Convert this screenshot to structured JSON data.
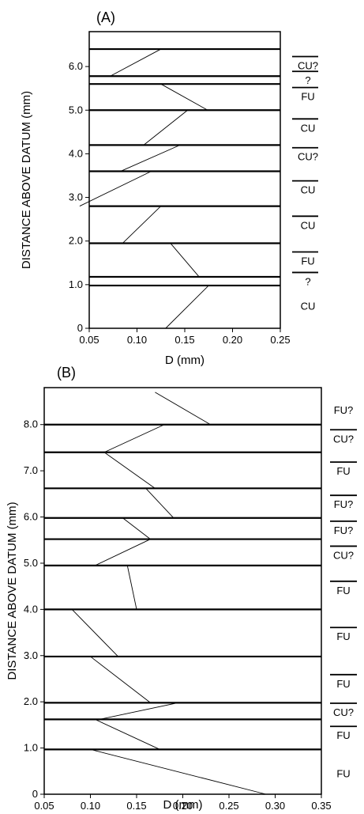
{
  "chart_data": [
    {
      "type": "line",
      "panel_label": "(A)",
      "xlabel": "D (mm)",
      "ylabel": "DISTANCE ABOVE DATUM (mm)",
      "xlim": [
        0.05,
        0.25
      ],
      "ylim": [
        0,
        6.8
      ],
      "xticks": [
        0.05,
        0.1,
        0.15,
        0.2,
        0.25
      ],
      "xtick_labels": [
        "0.05",
        "0.10",
        "0.15",
        "0.20",
        "0.25"
      ],
      "yticks": [
        0,
        1.0,
        2.0,
        3.0,
        4.0,
        5.0,
        6.0
      ],
      "ytick_labels": [
        "0",
        "1.0",
        "2.0",
        "3.0",
        "4.0",
        "5.0",
        "6.0"
      ],
      "boundaries": [
        0.98,
        1.18,
        1.95,
        2.8,
        3.6,
        4.2,
        5.0,
        5.6,
        5.78,
        6.4
      ],
      "segments": [
        [
          [
            0.13,
            0
          ],
          [
            0.175,
            0.98
          ]
        ],
        [
          [
            0.165,
            1.18
          ],
          [
            0.135,
            1.95
          ]
        ],
        [
          [
            0.085,
            1.95
          ],
          [
            0.125,
            2.8
          ]
        ],
        [
          [
            0.04,
            2.8
          ],
          [
            0.115,
            3.6
          ]
        ],
        [
          [
            0.083,
            3.6
          ],
          [
            0.145,
            4.2
          ]
        ],
        [
          [
            0.107,
            4.2
          ],
          [
            0.153,
            5.0
          ]
        ],
        [
          [
            0.174,
            5.0
          ],
          [
            0.125,
            5.6
          ]
        ],
        [
          [
            0.072,
            5.78
          ],
          [
            0.125,
            6.4
          ]
        ]
      ],
      "units": [
        {
          "label": "CU",
          "y": 0.52,
          "bar": false
        },
        {
          "label": "?",
          "y": 1.08,
          "bar": true
        },
        {
          "label": "FU",
          "y": 1.55,
          "bar": true
        },
        {
          "label": "CU",
          "y": 2.37,
          "bar": true
        },
        {
          "label": "CU",
          "y": 3.18,
          "bar": true
        },
        {
          "label": "CU?",
          "y": 3.94,
          "bar": true
        },
        {
          "label": "CU",
          "y": 4.6,
          "bar": true
        },
        {
          "label": "FU",
          "y": 5.32,
          "bar": true
        },
        {
          "label": "?",
          "y": 5.69,
          "bar": true
        },
        {
          "label": "CU?",
          "y": 6.03,
          "bar": true
        }
      ]
    },
    {
      "type": "line",
      "panel_label": "(B)",
      "xlabel": "D (mm)",
      "ylabel": "DISTANCE ABOVE DATUM (mm)",
      "xlim": [
        0.05,
        0.35
      ],
      "ylim": [
        0,
        8.8
      ],
      "xticks": [
        0.05,
        0.1,
        0.15,
        0.2,
        0.25,
        0.3,
        0.35
      ],
      "xtick_labels": [
        "0.05",
        "0.10",
        "0.15",
        "0.20",
        "0.25",
        "0.30",
        "0.35"
      ],
      "yticks": [
        0,
        1.0,
        2.0,
        3.0,
        4.0,
        5.0,
        6.0,
        7.0,
        8.0
      ],
      "ytick_labels": [
        "0",
        "1.0",
        "2.0",
        "3.0",
        "4.0",
        "5.0",
        "6.0",
        "7.0",
        "8.0"
      ],
      "boundaries": [
        0.97,
        1.62,
        1.98,
        2.98,
        4.0,
        4.95,
        5.52,
        5.98,
        6.62,
        7.4,
        8.0
      ],
      "segments": [
        [
          [
            0.1,
            0.97
          ],
          [
            0.29,
            0.0
          ]
        ],
        [
          [
            0.105,
            1.62
          ],
          [
            0.175,
            0.97
          ]
        ],
        [
          [
            0.11,
            1.62
          ],
          [
            0.195,
            1.98
          ]
        ],
        [
          [
            0.1,
            2.98
          ],
          [
            0.165,
            1.98
          ]
        ],
        [
          [
            0.08,
            4.0
          ],
          [
            0.13,
            2.98
          ]
        ],
        [
          [
            0.14,
            4.95
          ],
          [
            0.15,
            4.0
          ]
        ],
        [
          [
            0.105,
            4.95
          ],
          [
            0.165,
            5.52
          ]
        ],
        [
          [
            0.135,
            5.98
          ],
          [
            0.165,
            5.52
          ]
        ],
        [
          [
            0.16,
            6.62
          ],
          [
            0.19,
            5.98
          ]
        ],
        [
          [
            0.115,
            7.4
          ],
          [
            0.17,
            6.62
          ]
        ],
        [
          [
            0.115,
            7.4
          ],
          [
            0.18,
            8.0
          ]
        ],
        [
          [
            0.17,
            8.7
          ],
          [
            0.23,
            8.0
          ]
        ]
      ],
      "units": [
        {
          "label": "FU",
          "y": 0.45,
          "bar": false
        },
        {
          "label": "FU",
          "y": 1.28,
          "bar": true
        },
        {
          "label": "CU?",
          "y": 1.78,
          "bar": true
        },
        {
          "label": "FU",
          "y": 2.4,
          "bar": true
        },
        {
          "label": "FU",
          "y": 3.42,
          "bar": true
        },
        {
          "label": "FU",
          "y": 4.42,
          "bar": true
        },
        {
          "label": "CU?",
          "y": 5.18,
          "bar": true
        },
        {
          "label": "FU?",
          "y": 5.72,
          "bar": true
        },
        {
          "label": "FU?",
          "y": 6.28,
          "bar": true
        },
        {
          "label": "FU",
          "y": 7.0,
          "bar": true
        },
        {
          "label": "CU?",
          "y": 7.7,
          "bar": true
        },
        {
          "label": "FU?",
          "y": 8.32,
          "bar": false
        }
      ]
    }
  ]
}
